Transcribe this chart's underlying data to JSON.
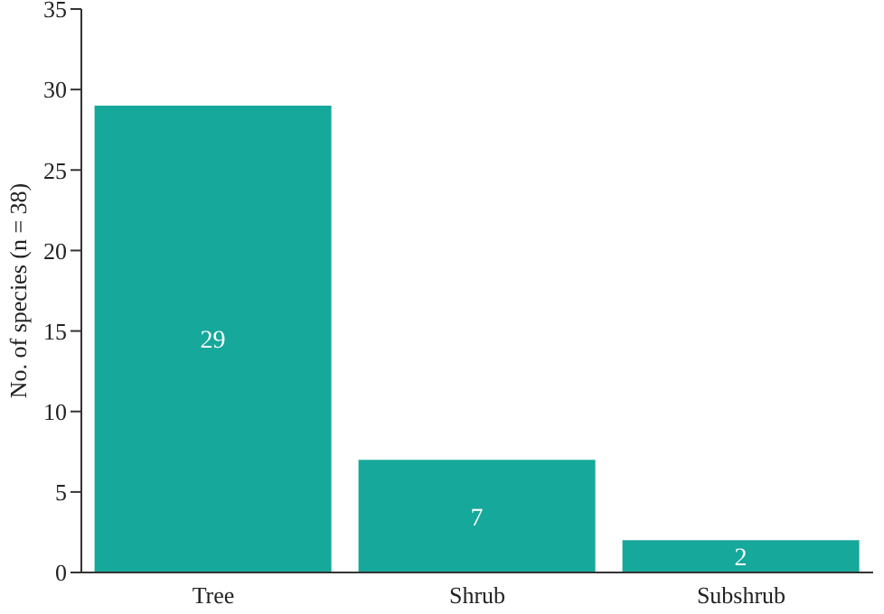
{
  "chart_data": {
    "type": "bar",
    "ylabel": "No. of species (n = 38)",
    "categories": [
      "Tree",
      "Shrub",
      "Subshrub"
    ],
    "values": [
      29,
      7,
      2
    ],
    "color": "#16a89a",
    "ylim": [
      0,
      35
    ],
    "yticks": [
      0,
      5,
      10,
      15,
      20,
      25,
      30,
      35
    ],
    "grid": false,
    "data_labels": true
  }
}
